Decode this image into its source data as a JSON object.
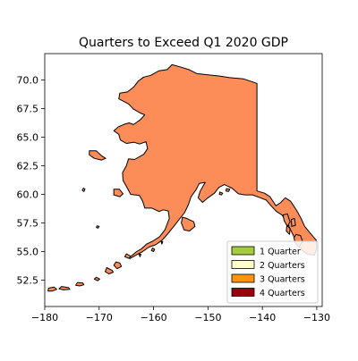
{
  "figure": {
    "title": "Quarters to Exceed Q1 2020 GDP"
  },
  "map": {
    "region": "Alaska",
    "fill_color": "#fc8d59",
    "outline_color": "#000000",
    "x_range": [
      -180,
      -129
    ],
    "y_range": [
      50.2,
      72.3
    ],
    "x_ticks": [
      -180,
      -170,
      -160,
      -150,
      -140,
      -130
    ],
    "x_tick_labels": [
      "−180",
      "−170",
      "−160",
      "−150",
      "−140",
      "−130"
    ],
    "y_ticks": [
      52.5,
      55.0,
      57.5,
      60.0,
      62.5,
      65.0,
      67.5,
      70.0
    ],
    "y_tick_labels": [
      "52.5",
      "55.0",
      "57.5",
      "60.0",
      "62.5",
      "65.0",
      "67.5",
      "70.0"
    ]
  },
  "legend": {
    "placement": "lower right",
    "items": [
      {
        "label": "1 Quarter",
        "color": "#a6cc3c"
      },
      {
        "label": "2 Quarters",
        "color": "#ffffcc"
      },
      {
        "label": "3 Quarters",
        "color": "#ff9410"
      },
      {
        "label": "4 Quarters",
        "color": "#99000d"
      }
    ]
  }
}
